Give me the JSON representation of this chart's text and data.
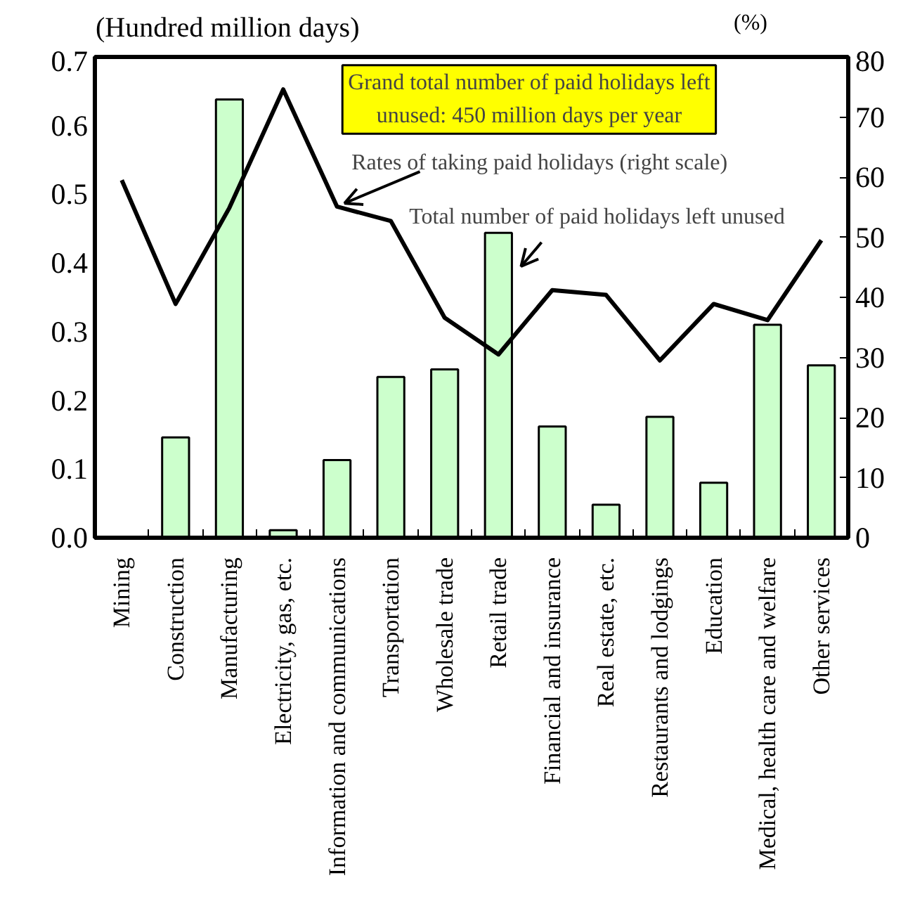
{
  "chart_data": {
    "type": "bar",
    "ylabel": "(Hundred million days)",
    "y2label": "(%)",
    "categories": [
      "Mining",
      "Construction",
      "Manufacturing",
      "Electricity, gas, etc.",
      "Information and communications",
      "Transportation",
      "Wholesale trade",
      "Retail trade",
      "Financial and insurance",
      "Real estate, etc.",
      "Restaurants and lodgings",
      "Education",
      "Medical, health care and welfare",
      "Other services"
    ],
    "series": [
      {
        "color": "#ccffcc",
        "values": [
          null,
          0.146,
          0.638,
          0.011,
          0.113,
          0.234,
          0.245,
          0.444,
          0.162,
          0.048,
          0.176,
          0.08,
          0.31,
          0.251
        ]
      },
      {
        "type": "line",
        "axis": "y2",
        "color": "#000000",
        "values": [
          59.5,
          38.9,
          54.9,
          74.6,
          55.1,
          52.7,
          36.6,
          30.5,
          41.2,
          40.4,
          29.5,
          38.9,
          36.2,
          49.5
        ]
      }
    ],
    "ylim": [
      0,
      0.7
    ],
    "yticks": [
      {
        "value": 0,
        "label": "0.0"
      },
      0.1,
      0.2,
      0.3,
      0.4,
      0.5,
      0.6,
      0.7
    ],
    "y2lim": [
      0,
      80
    ],
    "y2ticks": [
      0,
      10,
      20,
      30,
      40,
      50,
      60,
      70,
      80
    ],
    "annotations": [
      "Grand total number of paid holidays left unused: 450 million days per year",
      "Rates of taking paid holidays (right scale)",
      "Total number of paid holidays left unused"
    ],
    "grid": false
  }
}
